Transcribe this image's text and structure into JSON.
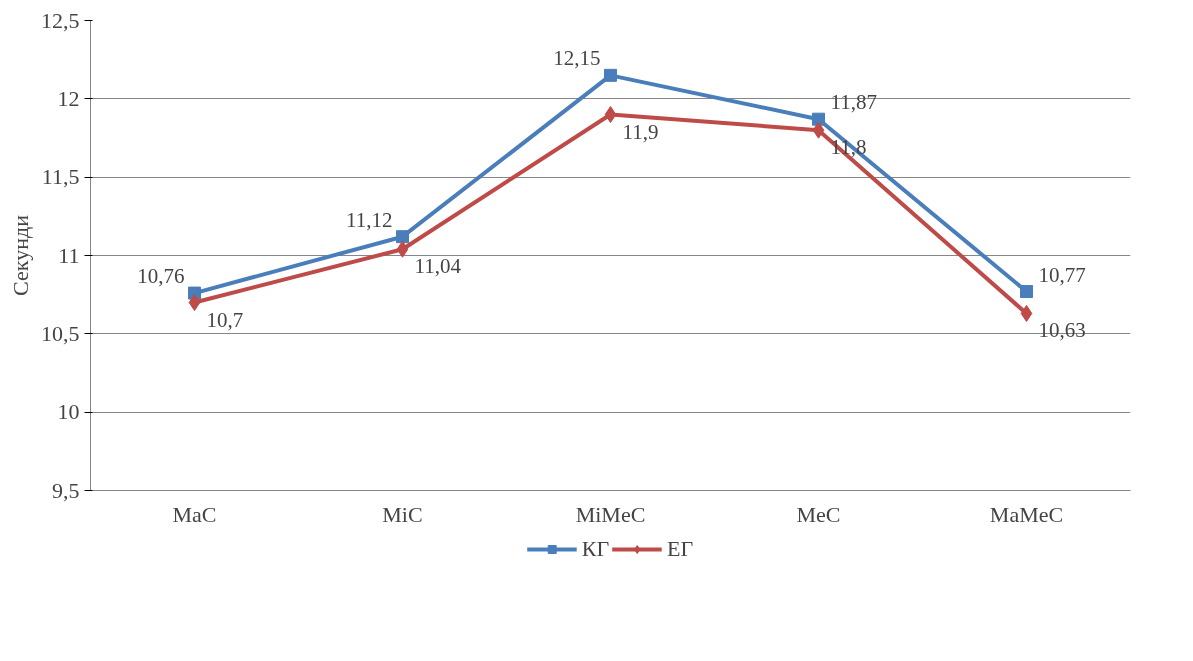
{
  "chart_data": {
    "type": "line",
    "ylabel": "Секунди",
    "categories": [
      "MaC",
      "MiC",
      "MiMeC",
      "MeC",
      "MaMeC"
    ],
    "series": [
      {
        "name": "КГ",
        "color": "#4a7ebb",
        "marker": "square",
        "values": [
          10.76,
          11.12,
          12.15,
          11.87,
          10.77
        ],
        "value_labels": [
          "10,76",
          "11,12",
          "12,15",
          "11,87",
          "10,77"
        ]
      },
      {
        "name": "ЕГ",
        "color": "#be4b48",
        "marker": "diamond",
        "values": [
          10.7,
          11.04,
          11.9,
          11.8,
          10.63
        ],
        "value_labels": [
          "10,7",
          "11,04",
          "11,9",
          "11,8",
          "10,63"
        ]
      }
    ],
    "ylim": [
      9.5,
      12.5
    ],
    "yticks": [
      {
        "value": 9.5,
        "label": "9,5"
      },
      10,
      {
        "value": 10.5,
        "label": "10,5"
      },
      11,
      {
        "value": 11.5,
        "label": "11,5"
      },
      12,
      {
        "value": 12.5,
        "label": "12,5"
      }
    ],
    "grid": "y",
    "legend": "bottom",
    "line_style": "solid"
  }
}
